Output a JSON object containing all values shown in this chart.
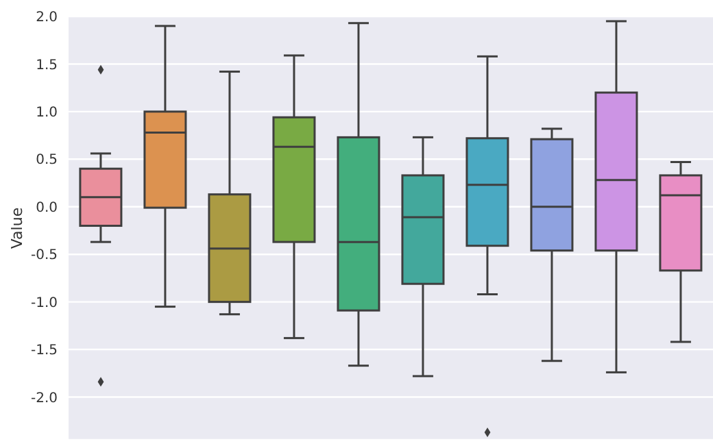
{
  "chart_data": {
    "type": "box",
    "ylabel": "Value",
    "categories": [
      null,
      null,
      null,
      null,
      null,
      null,
      null,
      null,
      null,
      null
    ],
    "colors": [
      "#ea8f9c",
      "#dc9250",
      "#ab9b43",
      "#79aa44",
      "#43ae7d",
      "#43a89c",
      "#4aa9c2",
      "#8fa2e0",
      "#cc94e4",
      "#e88ec4"
    ],
    "boxes": [
      {
        "low": -0.37,
        "q1": -0.2,
        "median": 0.1,
        "q3": 0.4,
        "high": 0.56,
        "outliers": [
          1.44,
          -1.84
        ]
      },
      {
        "low": -1.05,
        "q1": -0.01,
        "median": 0.78,
        "q3": 1.0,
        "high": 1.9
      },
      {
        "low": -1.13,
        "q1": -1.0,
        "median": -0.44,
        "q3": 0.13,
        "high": 1.42
      },
      {
        "low": -1.38,
        "q1": -0.37,
        "median": 0.63,
        "q3": 0.94,
        "high": 1.59
      },
      {
        "low": -1.67,
        "q1": -1.09,
        "median": -0.37,
        "q3": 0.73,
        "high": 1.93
      },
      {
        "low": -1.78,
        "q1": -0.81,
        "median": -0.11,
        "q3": 0.33,
        "high": 0.73
      },
      {
        "low": -0.92,
        "q1": -0.41,
        "median": 0.23,
        "q3": 0.72,
        "high": 1.58,
        "outliers": [
          -2.37
        ]
      },
      {
        "low": -1.62,
        "q1": -0.46,
        "median": 0.0,
        "q3": 0.71,
        "high": 0.82
      },
      {
        "low": -1.74,
        "q1": -0.46,
        "median": 0.28,
        "q3": 1.2,
        "high": 1.95
      },
      {
        "low": -1.42,
        "q1": -0.67,
        "median": 0.12,
        "q3": 0.33,
        "high": 0.47
      }
    ],
    "ylim": [
      -2.45,
      2.0
    ],
    "yticks": [
      {
        "value": -2,
        "label": "-2.0"
      },
      -1.5,
      {
        "value": -1,
        "label": "-1.0"
      },
      -0.5,
      {
        "value": 0,
        "label": "0.0"
      },
      0.5,
      {
        "value": 1,
        "label": "1.0"
      },
      1.5,
      {
        "value": 2,
        "label": "2.0"
      }
    ],
    "grid": "y",
    "tick_labels": "y"
  }
}
